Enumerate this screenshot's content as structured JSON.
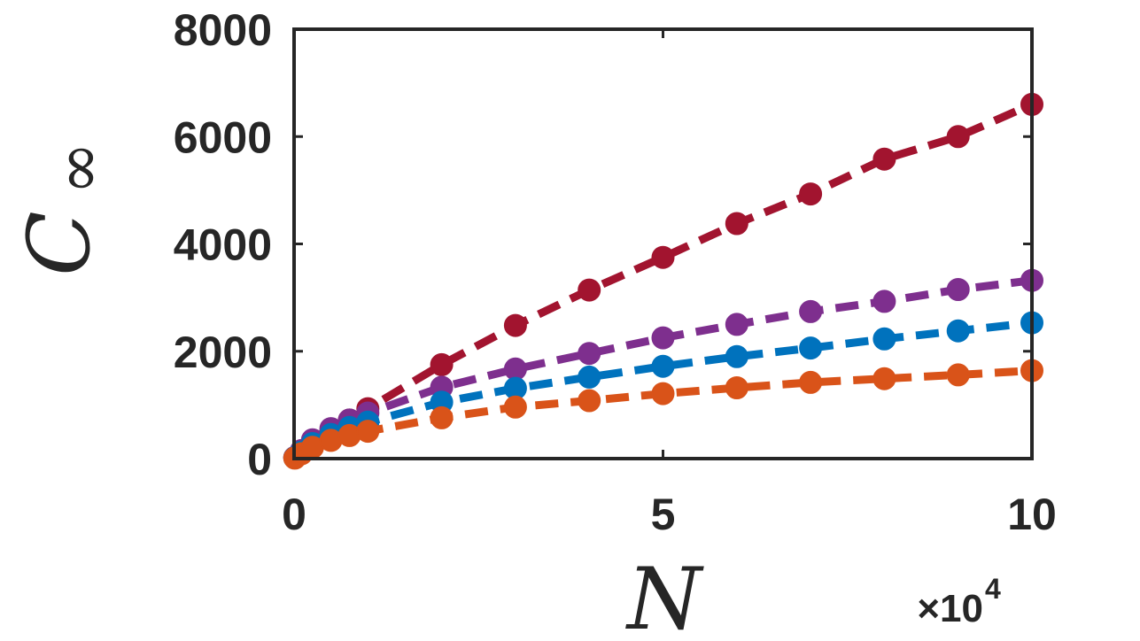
{
  "chart_data": {
    "type": "line",
    "xlabel": "N",
    "ylabel": "C",
    "ylabel_sub": "∞",
    "x_multiplier_label": "×10",
    "x_multiplier_exp": "4",
    "xlim": [
      0,
      10
    ],
    "ylim": [
      0,
      8000
    ],
    "x_ticks": [
      0,
      5,
      10
    ],
    "x_tick_labels": [
      "0",
      "5",
      "10"
    ],
    "y_ticks": [
      0,
      2000,
      4000,
      6000,
      8000
    ],
    "y_tick_labels": [
      "0",
      "2000",
      "4000",
      "6000",
      "8000"
    ],
    "grid": false,
    "series": [
      {
        "color": "#A2142F",
        "x": [
          0.01,
          0.1,
          0.25,
          0.5,
          0.75,
          1,
          2,
          3,
          4,
          5,
          6,
          7,
          8,
          9,
          10
        ],
        "y": [
          20,
          130,
          320,
          520,
          720,
          930,
          1750,
          2480,
          3140,
          3750,
          4380,
          4930,
          5580,
          6000,
          6600
        ]
      },
      {
        "color": "#7E2F8E",
        "x": [
          0.01,
          0.1,
          0.25,
          0.5,
          0.75,
          1,
          2,
          3,
          4,
          5,
          6,
          7,
          8,
          9,
          10
        ],
        "y": [
          20,
          150,
          350,
          560,
          720,
          850,
          1330,
          1670,
          1960,
          2250,
          2500,
          2740,
          2930,
          3150,
          3320
        ]
      },
      {
        "color": "#0072BD",
        "x": [
          0.01,
          0.1,
          0.25,
          0.5,
          0.75,
          1,
          2,
          3,
          4,
          5,
          6,
          7,
          8,
          9,
          10
        ],
        "y": [
          15,
          120,
          280,
          450,
          580,
          680,
          1050,
          1310,
          1520,
          1720,
          1900,
          2060,
          2230,
          2380,
          2530
        ]
      },
      {
        "color": "#D95319",
        "x": [
          0.01,
          0.1,
          0.25,
          0.5,
          0.75,
          1,
          2,
          3,
          4,
          5,
          6,
          7,
          8,
          9,
          10
        ],
        "y": [
          10,
          90,
          210,
          340,
          430,
          510,
          760,
          960,
          1080,
          1210,
          1320,
          1420,
          1490,
          1560,
          1640
        ]
      }
    ]
  }
}
